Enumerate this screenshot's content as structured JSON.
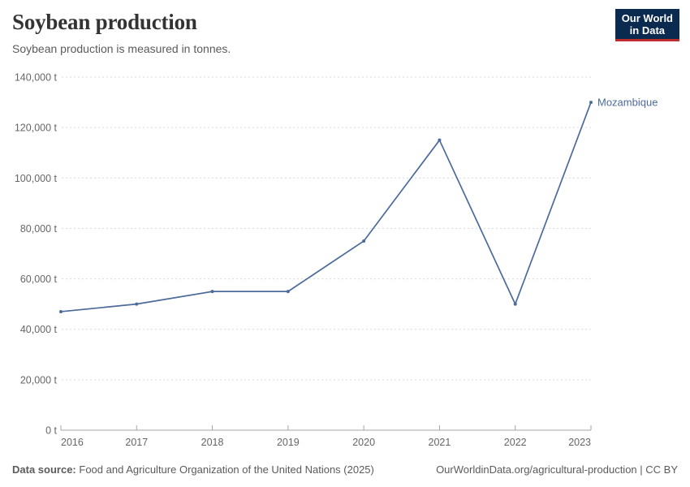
{
  "header": {
    "title": "Soybean production",
    "subtitle": "Soybean production is measured in tonnes."
  },
  "logo": {
    "line1": "Our World",
    "line2": "in Data",
    "bg_color": "#0b2a4f",
    "accent_color": "#be2d2d"
  },
  "chart_data": {
    "type": "line",
    "title": "Soybean production",
    "subtitle": "Soybean production is measured in tonnes.",
    "x": [
      2016,
      2017,
      2018,
      2019,
      2020,
      2021,
      2022,
      2023
    ],
    "series": [
      {
        "name": "Mozambique",
        "values": [
          47000,
          50000,
          55000,
          55000,
          75000,
          115000,
          50000,
          130000
        ],
        "color": "#4c6a9c"
      }
    ],
    "xlabel": "",
    "ylabel": "",
    "unit": "t",
    "ylim": [
      0,
      140000
    ],
    "yticks": [
      0,
      20000,
      40000,
      60000,
      80000,
      100000,
      120000,
      140000
    ],
    "ytick_label_format": "number with thousands separator + ' t'",
    "grid": "horizontal dashed",
    "legend_position": "label at end of line",
    "colors": {
      "gridline": "#d9d9d9",
      "axis_line": "#a5a5a5",
      "tick_text": "#666666"
    }
  },
  "footer": {
    "source_label": "Data source:",
    "source_text": "Food and Agriculture Organization of the United Nations (2025)",
    "right_text": "OurWorldinData.org/agricultural-production | CC BY"
  }
}
